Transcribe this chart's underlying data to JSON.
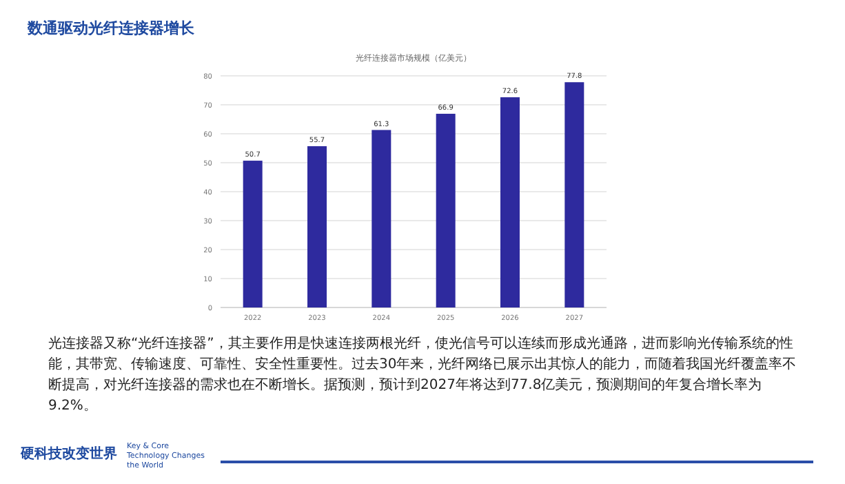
{
  "chart_data": {
    "type": "bar",
    "title": "数通驱动光纤连接器增长",
    "subtitle": "光纤连接器市场规模（亿美元）",
    "categories": [
      "2022",
      "2023",
      "2024",
      "2025",
      "2026",
      "2027"
    ],
    "values": [
      50.7,
      55.7,
      61.3,
      66.9,
      72.6,
      77.8
    ],
    "color": "#2e2a9e",
    "ylim": [
      0,
      80
    ],
    "yticks": [
      0,
      10,
      20,
      30,
      40,
      50,
      60,
      70,
      80
    ],
    "grid": "y",
    "data_labels": true,
    "annotations": [
      "光连接器又称“光纤连接器”，其主要作用是快速连接两根光纤，使光信号可以连续而形成光通路，进而影响光传输系统的性能，其带宽、传输速度、可靠性、安全性重要性。过去30年来，光纤网络已展示出其惊人的能力，而随着我国光纤覆盖率不断提高，对光纤连接器的需求也在不断增长。据预测，预计到2027年将达到77.8亿美元，预测期间的年复合增长率为9.2%。",
      "硬科技改变世界",
      "Key & Core Technology Changes the World"
    ]
  }
}
